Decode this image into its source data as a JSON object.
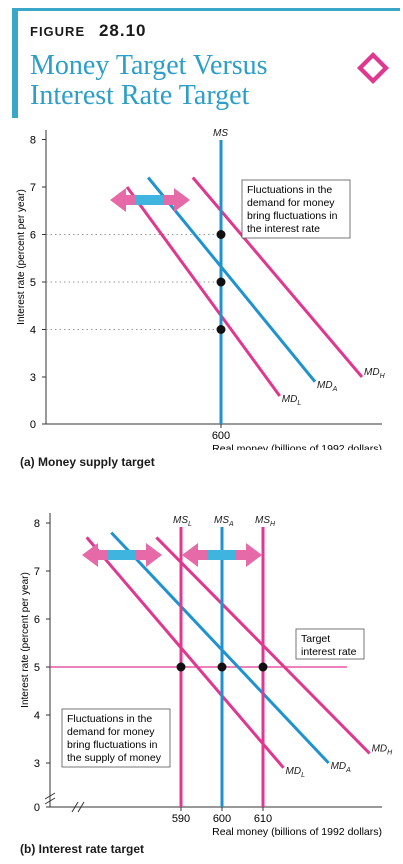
{
  "figure": {
    "label_prefix": "FIGURE",
    "number": "28.10",
    "title_line1": "Money Target Versus",
    "title_line2": "Interest Rate Target"
  },
  "colors": {
    "accent": "#2d9ec7",
    "pink": "#e0388f",
    "blue": "#1f92d0",
    "grid": "#999999"
  },
  "chart_data": [
    {
      "type": "line",
      "caption": "(a) Money supply target",
      "xlabel": "Real money (billions of 1992 dollars)",
      "ylabel": "Interest rate (percent per year)",
      "ylim": [
        0,
        8
      ],
      "yticks": [
        "0",
        "3",
        "4",
        "5",
        "6",
        "7",
        "8"
      ],
      "xticks": [
        "600"
      ],
      "grid": false,
      "supply_lines": [
        {
          "name": "MS",
          "x": 600
        }
      ],
      "series": [
        {
          "name": "MD",
          "sub": "L",
          "points": [
            [
              560,
              7.0
            ],
            [
              625,
              2.6
            ]
          ]
        },
        {
          "name": "MD",
          "sub": "A",
          "points": [
            [
              569,
              7.2
            ],
            [
              640,
              2.9
            ]
          ]
        },
        {
          "name": "MD",
          "sub": "H",
          "points": [
            [
              588,
              7.2
            ],
            [
              660,
              3.0
            ]
          ]
        }
      ],
      "points": [
        [
          600,
          6
        ],
        [
          600,
          5
        ],
        [
          600,
          4
        ]
      ],
      "annotation": [
        "Fluctuations in the",
        "demand for money",
        "bring fluctuations in",
        "the interest rate"
      ]
    },
    {
      "type": "line",
      "caption": "(b) Interest rate target",
      "xlabel": "Real money (billions of 1992 dollars)",
      "ylabel": "Interest rate (percent per year)",
      "ylim": [
        0,
        8
      ],
      "yticks": [
        "0",
        "3",
        "4",
        "5",
        "6",
        "7",
        "8"
      ],
      "xticks": [
        "590",
        "600",
        "610"
      ],
      "grid": false,
      "supply_lines": [
        {
          "name": "MS",
          "sub": "L",
          "x": 590
        },
        {
          "name": "MS",
          "sub": "A",
          "x": 600
        },
        {
          "name": "MS",
          "sub": "H",
          "x": 610
        }
      ],
      "target_line": {
        "y": 5,
        "label": [
          "Target",
          "interest rate"
        ]
      },
      "series": [
        {
          "name": "MD",
          "sub": "L",
          "points": [
            [
              567,
              7.7
            ],
            [
              615,
              2.9
            ]
          ]
        },
        {
          "name": "MD",
          "sub": "A",
          "points": [
            [
              573,
              7.8
            ],
            [
              626,
              3.0
            ]
          ]
        },
        {
          "name": "MD",
          "sub": "H",
          "points": [
            [
              584,
              7.7
            ],
            [
              636,
              3.2
            ]
          ]
        }
      ],
      "points": [
        [
          590,
          5
        ],
        [
          600,
          5
        ],
        [
          610,
          5
        ]
      ],
      "annotation": [
        "Fluctuations in the",
        "demand for money",
        "bring fluctuations in",
        "the supply of money"
      ]
    }
  ]
}
